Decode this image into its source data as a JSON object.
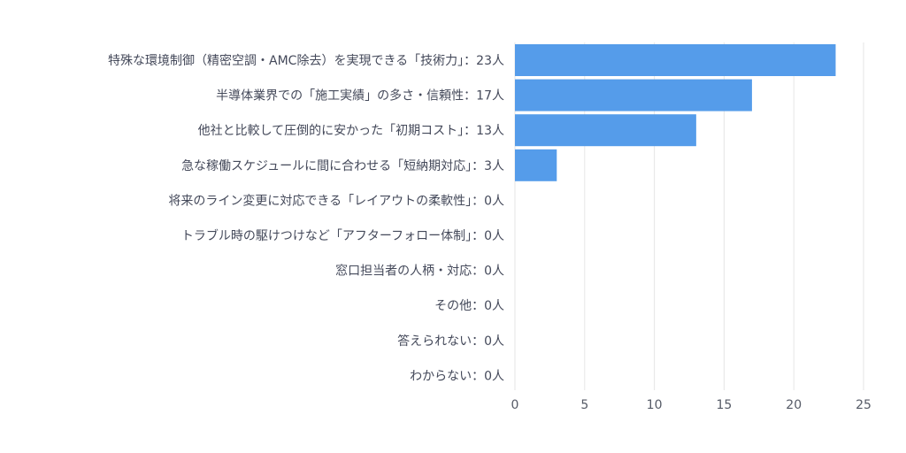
{
  "chart_data": {
    "type": "bar",
    "orientation": "horizontal",
    "categories": [
      "特殊な環境制御（精密空調・AMC除去）を実現できる「技術力」：23人",
      "半導体業界での「施工実績」の多さ・信頼性：17人",
      "他社と比較して圧倒的に安かった「初期コスト」：13人",
      "急な稼働スケジュールに間に合わせる「短納期対応」：3人",
      "将来のライン変更に対応できる「レイアウトの柔軟性」：0人",
      "トラブル時の駆けつけなど「アフターフォロー体制」：0人",
      "窓口担当者の人柄・対応：0人",
      "その他：0人",
      "答えられない：0人",
      "わからない：0人"
    ],
    "values": [
      23,
      17,
      13,
      3,
      0,
      0,
      0,
      0,
      0,
      0
    ],
    "xlim": [
      0,
      25
    ],
    "xticks": [
      0,
      5,
      10,
      15,
      20,
      25
    ],
    "grid": true,
    "bar_color": "#559cea"
  }
}
